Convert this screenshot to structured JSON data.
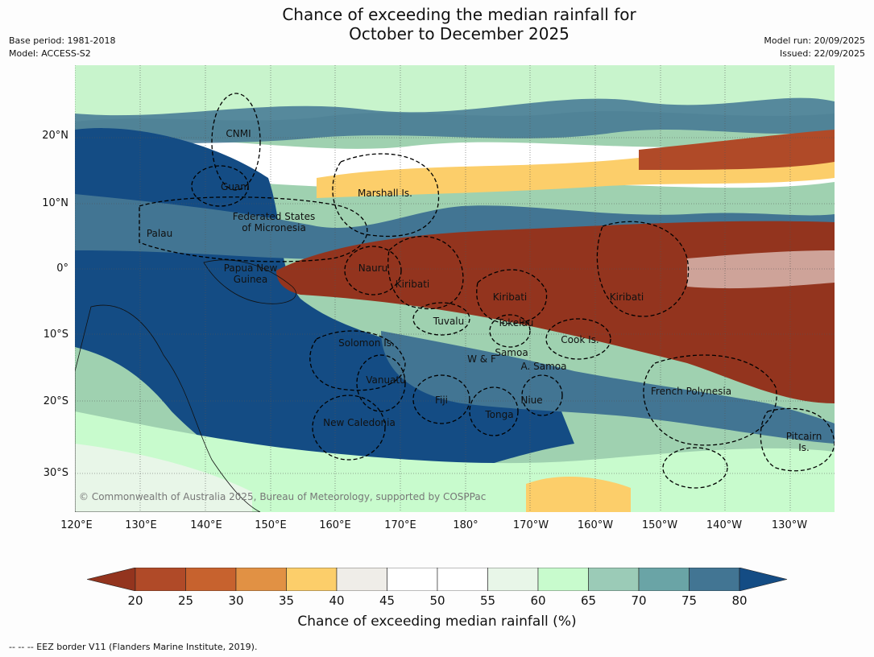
{
  "title": {
    "line1": "Chance of exceeding the median rainfall for",
    "line2": "October to December 2025"
  },
  "meta": {
    "base_period": "Base period: 1981-2018",
    "model": "Model: ACCESS-S2",
    "model_run": "Model run: 20/09/2025",
    "issued": "Issued: 22/09/2025"
  },
  "axes": {
    "lat_labels": [
      "20°N",
      "10°N",
      "0°",
      "10°S",
      "20°S",
      "30°S"
    ],
    "lon_labels": [
      "120°E",
      "130°E",
      "140°E",
      "150°E",
      "160°E",
      "170°E",
      "180°",
      "170°W",
      "160°W",
      "150°W",
      "140°W",
      "130°W"
    ]
  },
  "regions": [
    {
      "name": "CNMI"
    },
    {
      "name": "Guam"
    },
    {
      "name": "Marshall Is."
    },
    {
      "name": "Federated States\nof Micronesia"
    },
    {
      "name": "Palau"
    },
    {
      "name": "Papua New\nGuinea"
    },
    {
      "name": "Nauru"
    },
    {
      "name": "Kiribati"
    },
    {
      "name": "Kiribati"
    },
    {
      "name": "Kiribati"
    },
    {
      "name": "Tuvalu"
    },
    {
      "name": "Tokelau"
    },
    {
      "name": "Cook Is."
    },
    {
      "name": "Solomon Is."
    },
    {
      "name": "Samoa"
    },
    {
      "name": "W & F"
    },
    {
      "name": "A. Samoa"
    },
    {
      "name": "Vanuatu"
    },
    {
      "name": "Fiji"
    },
    {
      "name": "Niue"
    },
    {
      "name": "Tonga"
    },
    {
      "name": "French Polynesia"
    },
    {
      "name": "New Caledonia"
    },
    {
      "name": "Pitcairn\nIs."
    }
  ],
  "copyright": "© Commonwealth of Australia 2025, Bureau of Meteorology, supported by COSPPac",
  "colorbar": {
    "ticks": [
      "20",
      "25",
      "30",
      "35",
      "40",
      "45",
      "50",
      "55",
      "60",
      "65",
      "70",
      "75",
      "80"
    ],
    "colors": [
      "#b04a28",
      "#c7622e",
      "#e19144",
      "#fcce6a",
      "#efede8",
      "#ffffff",
      "#ffffff",
      "#e8f6e8",
      "#c8fbcd",
      "#9bcbb7",
      "#6aa4a6",
      "#427593"
    ],
    "under_color": "#93341e",
    "over_color": "#144c84",
    "label": "Chance of exceeding median rainfall (%)"
  },
  "footnote": "--  --  -- EEZ border V11 (Flanders Marine Institute, 2019)."
}
